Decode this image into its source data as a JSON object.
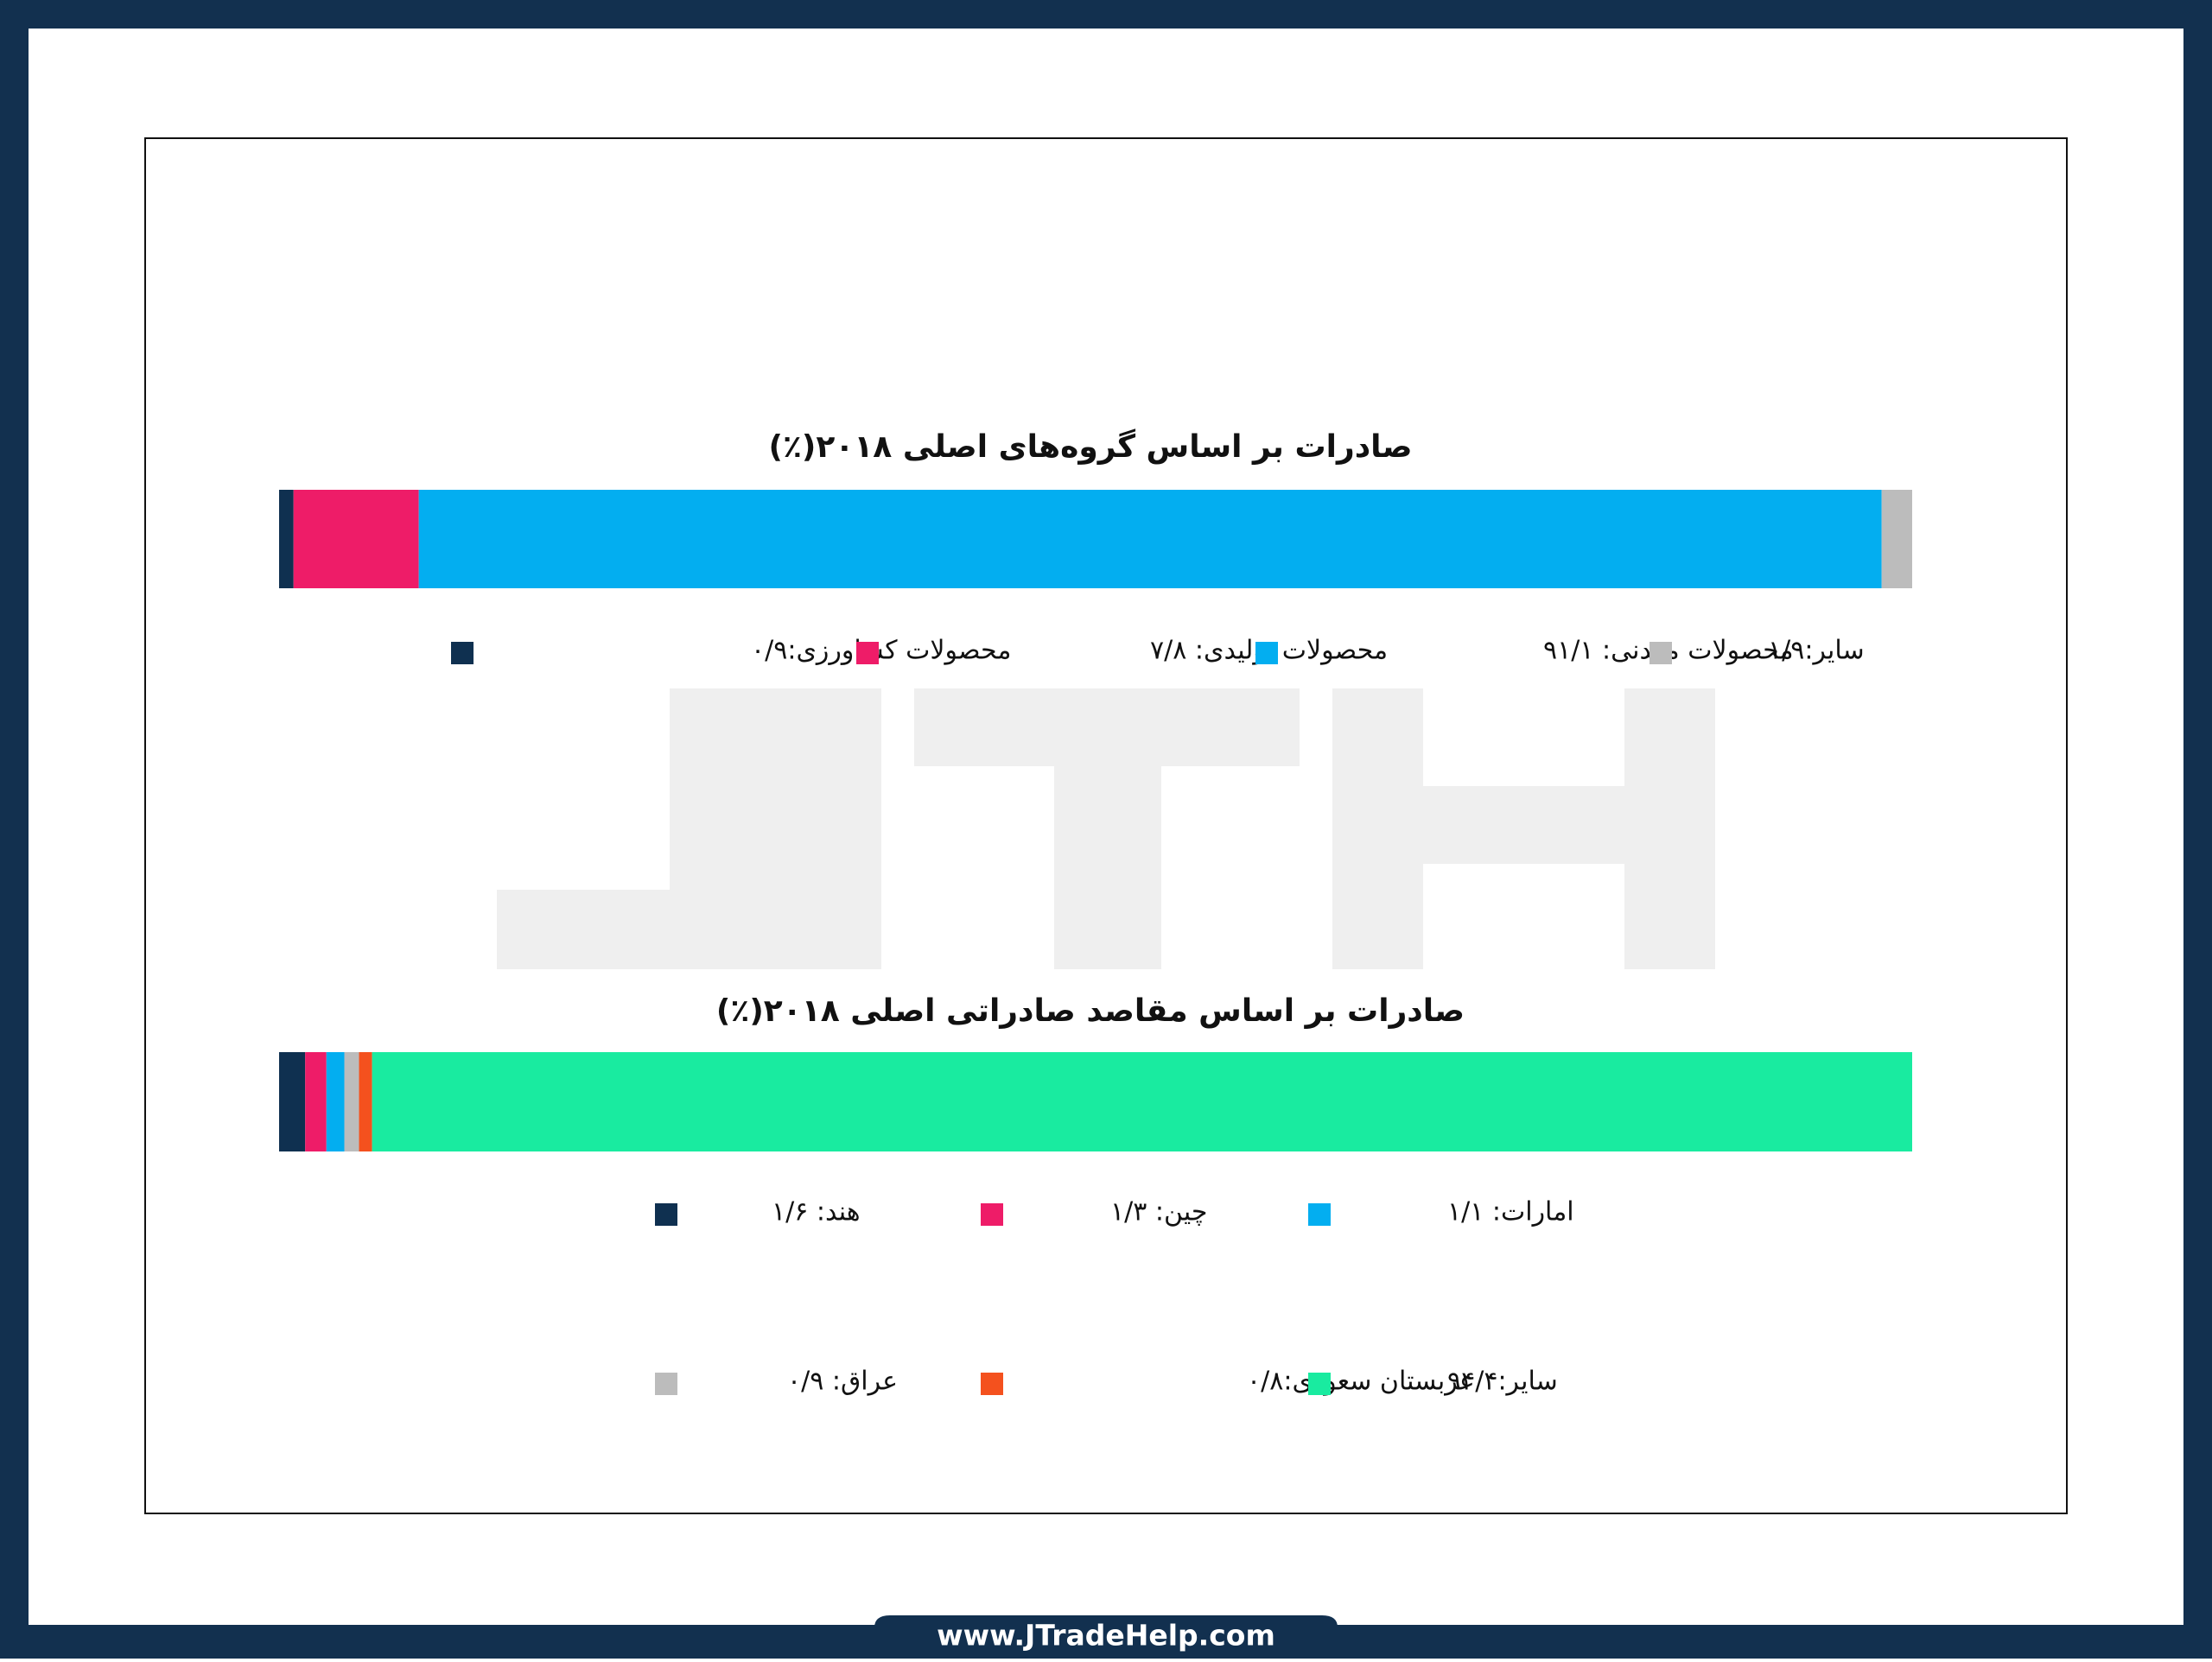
{
  "charts": [
    {
      "chart_data": {
        "type": "bar",
        "stacked": true,
        "orientation": "horizontal",
        "title": "صادرات بر اساس گروه‌های اصلی ۲۰۱۸(٪)",
        "series": [
          {
            "name": "محصولات کشاورزی:۰/۹",
            "color": "#0f3050",
            "values": [
              0.9
            ]
          },
          {
            "name": "محصولات تولیدی: ۷/۸",
            "color": "#ee1c68",
            "values": [
              7.8
            ]
          },
          {
            "name": "محصولات معدنی: ۹۱/۱",
            "color": "#03aef0",
            "values": [
              91.1
            ]
          },
          {
            "name": "سایر:۱/۹",
            "color": "#bcbcbc",
            "values": [
              1.9
            ]
          }
        ]
      }
    },
    {
      "chart_data": {
        "type": "bar",
        "stacked": true,
        "orientation": "horizontal",
        "title": "صادرات بر اساس مقاصد صادراتی اصلی ۲۰۱۸(٪)",
        "series": [
          {
            "name": "هند: ۱/۶",
            "color": "#0f3050",
            "values": [
              1.6
            ]
          },
          {
            "name": "چین: ۱/۳",
            "color": "#ee1c68",
            "values": [
              1.3
            ]
          },
          {
            "name": "امارات: ۱/۱",
            "color": "#03aef0",
            "values": [
              1.1
            ]
          },
          {
            "name": "عراق: ۰/۹",
            "color": "#bcbcbc",
            "values": [
              0.9
            ]
          },
          {
            "name": "عربستان سعودی:۰/۸",
            "color": "#f4511e",
            "values": [
              0.8
            ]
          },
          {
            "name": "سایر:۹۴/۴",
            "color": "#19eba0",
            "values": [
              94.4
            ]
          }
        ]
      }
    }
  ],
  "footer": {
    "url": "www.JTradeHelp.com"
  }
}
